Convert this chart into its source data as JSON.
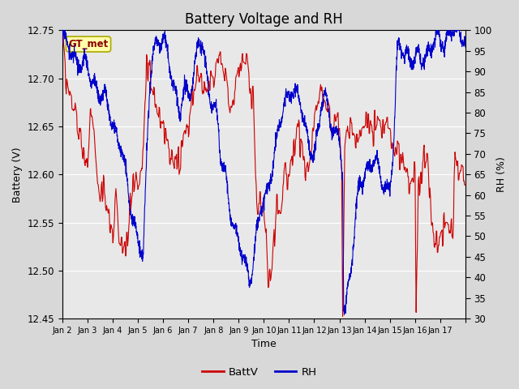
{
  "title": "Battery Voltage and RH",
  "xlabel": "Time",
  "ylabel_left": "Battery (V)",
  "ylabel_right": "RH (%)",
  "ylim_left": [
    12.45,
    12.75
  ],
  "ylim_right": [
    30,
    100
  ],
  "yticks_left": [
    12.45,
    12.5,
    12.55,
    12.6,
    12.65,
    12.7,
    12.75
  ],
  "yticks_right": [
    30,
    35,
    40,
    45,
    50,
    55,
    60,
    65,
    70,
    75,
    80,
    85,
    90,
    95,
    100
  ],
  "xtick_labels": [
    "Jan 2",
    "Jan 3",
    "Jan 4",
    "Jan 5",
    "Jan 6",
    "Jan 7",
    "Jan 8",
    "Jan 9",
    "Jan 10",
    "Jan 11",
    "Jan 12",
    "Jan 13",
    "Jan 14",
    "Jan 15",
    "Jan 16",
    "Jan 17"
  ],
  "color_batt": "#cc0000",
  "color_rh": "#0000cc",
  "bg_color": "#d8d8d8",
  "inner_bg": "#e8e8e8",
  "annotation_text": "GT_met",
  "annotation_bg": "#ffffaa",
  "annotation_border": "#aaaa00",
  "legend_batt": "BattV",
  "legend_rh": "RH",
  "title_fontsize": 12
}
